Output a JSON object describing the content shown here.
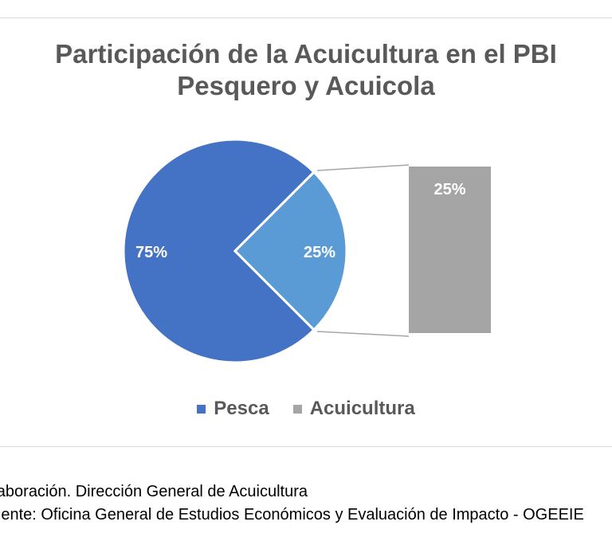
{
  "chart_data": {
    "type": "pie",
    "subtype": "pie-of-bar",
    "title_line1": "Participación de la Acuicultura en el PBI",
    "title_line2": "Pesquero y Acuicola",
    "slices": [
      {
        "name": "Pesca",
        "value": 75,
        "label": "75%",
        "color": "#4472C4"
      },
      {
        "name": "Acuicultura",
        "value": 25,
        "label": "25%",
        "color": "#5B9BD5"
      }
    ],
    "secondary_bar": {
      "label": "25%",
      "color": "#A5A5A5"
    },
    "legend": [
      {
        "name": "Pesca",
        "color": "#4472C4"
      },
      {
        "name": "Acuicultura",
        "color": "#A5A5A5"
      }
    ],
    "legend_position": "bottom"
  },
  "captions": {
    "line1": "Elaboración. Dirección General de Acuicultura",
    "line2": "Fuente: Oficina General de Estudios Económicos y Evaluación de Impacto - OGEEIE"
  }
}
